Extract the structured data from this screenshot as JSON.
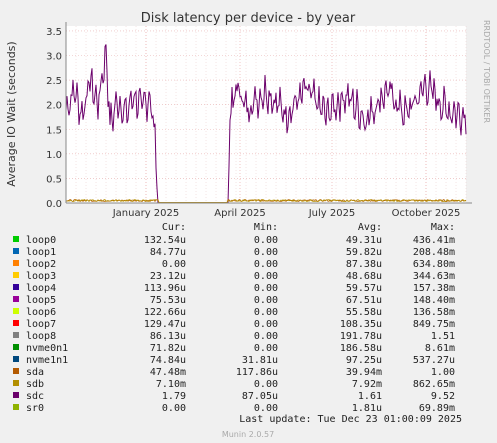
{
  "chart_data": {
    "type": "line",
    "title": "Disk latency per device - by year",
    "ylabel": "Average IO Wait (seconds)",
    "side_label": "RRDTOOL / TOBI OETIKER",
    "y_ticks": [
      "0.0",
      "0.5",
      "1.0",
      "1.5",
      "2.0",
      "2.5",
      "3.0",
      "3.5"
    ],
    "ylim": [
      0,
      3.6
    ],
    "x_ticks": [
      "January 2025",
      "April 2025",
      "July 2025",
      "October 2025"
    ],
    "grid": true,
    "series_note": "sdc oscillates ~1.7-2.2 s (spikes to ~3.1) except gap Jan-Apr 2025 where it is 0; other devices near 0",
    "sdc_profile": [
      [
        0,
        1.9
      ],
      [
        0.02,
        2.3
      ],
      [
        0.04,
        1.8
      ],
      [
        0.06,
        2.5
      ],
      [
        0.08,
        2.0
      ],
      [
        0.1,
        3.1
      ],
      [
        0.11,
        1.6
      ],
      [
        0.13,
        2.1
      ],
      [
        0.15,
        1.8
      ],
      [
        0.17,
        2.2
      ],
      [
        0.19,
        1.9
      ],
      [
        0.21,
        2.2
      ],
      [
        0.225,
        1.1
      ],
      [
        0.23,
        0
      ],
      [
        0.405,
        0
      ],
      [
        0.41,
        1.8
      ],
      [
        0.43,
        2.4
      ],
      [
        0.45,
        1.9
      ],
      [
        0.5,
        2.3
      ],
      [
        0.55,
        1.8
      ],
      [
        0.6,
        2.3
      ],
      [
        0.65,
        1.8
      ],
      [
        0.7,
        2.2
      ],
      [
        0.75,
        1.7
      ],
      [
        0.8,
        2.3
      ],
      [
        0.85,
        1.8
      ],
      [
        0.9,
        2.4
      ],
      [
        0.95,
        1.9
      ],
      [
        1.0,
        1.8
      ]
    ]
  },
  "table": {
    "headers": [
      "Cur:",
      "Min:",
      "Avg:",
      "Max:"
    ],
    "rows": [
      {
        "name": "loop0",
        "color": "#00cc00",
        "cur": "132.54u",
        "min": "0.00",
        "avg": "49.31u",
        "max": "436.41m"
      },
      {
        "name": "loop1",
        "color": "#0066b3",
        "cur": "84.77u",
        "min": "0.00",
        "avg": "59.82u",
        "max": "208.48m"
      },
      {
        "name": "loop2",
        "color": "#ff8000",
        "cur": "0.00",
        "min": "0.00",
        "avg": "87.38u",
        "max": "634.80m"
      },
      {
        "name": "loop3",
        "color": "#ffcc00",
        "cur": "23.12u",
        "min": "0.00",
        "avg": "48.68u",
        "max": "344.63m"
      },
      {
        "name": "loop4",
        "color": "#330099",
        "cur": "113.96u",
        "min": "0.00",
        "avg": "59.57u",
        "max": "157.38m"
      },
      {
        "name": "loop5",
        "color": "#990099",
        "cur": "75.53u",
        "min": "0.00",
        "avg": "67.51u",
        "max": "148.40m"
      },
      {
        "name": "loop6",
        "color": "#ccff00",
        "cur": "122.66u",
        "min": "0.00",
        "avg": "55.58u",
        "max": "136.58m"
      },
      {
        "name": "loop7",
        "color": "#ff0000",
        "cur": "129.47u",
        "min": "0.00",
        "avg": "108.35u",
        "max": "849.75m"
      },
      {
        "name": "loop8",
        "color": "#808080",
        "cur": "86.13u",
        "min": "0.00",
        "avg": "191.78u",
        "max": "1.51"
      },
      {
        "name": "nvme0n1",
        "color": "#008f00",
        "cur": "71.82u",
        "min": "0.00",
        "avg": "186.58u",
        "max": "8.61m"
      },
      {
        "name": "nvme1n1",
        "color": "#00487d",
        "cur": "74.84u",
        "min": "31.81u",
        "avg": "97.25u",
        "max": "537.27u"
      },
      {
        "name": "sda",
        "color": "#b35a00",
        "cur": "47.48m",
        "min": "117.86u",
        "avg": "39.94m",
        "max": "1.00"
      },
      {
        "name": "sdb",
        "color": "#b38f00",
        "cur": "7.10m",
        "min": "0.00",
        "avg": "7.92m",
        "max": "862.65m"
      },
      {
        "name": "sdc",
        "color": "#6b006b",
        "cur": "1.79",
        "min": "87.05u",
        "avg": "1.61",
        "max": "9.52"
      },
      {
        "name": "sr0",
        "color": "#8fb300",
        "cur": "0.00",
        "min": "0.00",
        "avg": "1.81u",
        "max": "69.89m"
      }
    ]
  },
  "footer": {
    "last_update": "Last update: Tue Dec 23 01:00:09 2025",
    "version": "Munin 2.0.57"
  }
}
